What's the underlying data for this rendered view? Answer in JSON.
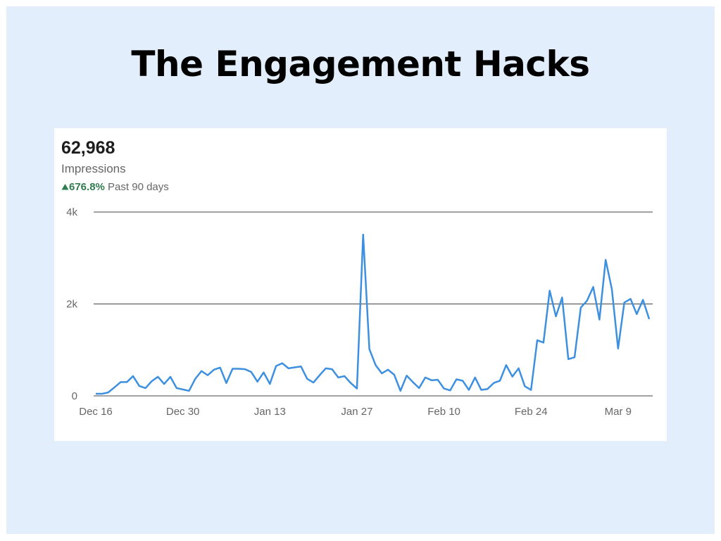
{
  "title": "The Engagement Hacks",
  "stats": {
    "total": "62,968",
    "metric": "Impressions",
    "change": "676.8%",
    "period": "Past 90 days"
  },
  "chart_data": {
    "type": "line",
    "categories": [
      "Dec 16",
      null,
      null,
      null,
      null,
      null,
      null,
      null,
      null,
      null,
      null,
      null,
      null,
      null,
      "Dec 30",
      null,
      null,
      null,
      null,
      null,
      null,
      null,
      null,
      null,
      null,
      null,
      null,
      null,
      "Jan 13",
      null,
      null,
      null,
      null,
      null,
      null,
      null,
      null,
      null,
      null,
      null,
      null,
      null,
      "Jan 27",
      null,
      null,
      null,
      null,
      null,
      null,
      null,
      null,
      null,
      null,
      null,
      null,
      null,
      "Feb 10",
      null,
      null,
      null,
      null,
      null,
      null,
      null,
      null,
      null,
      null,
      null,
      null,
      null,
      "Feb 24",
      null,
      null,
      null,
      null,
      null,
      null,
      null,
      null,
      null,
      null,
      null,
      null,
      null,
      "Mar 9",
      null,
      null,
      null,
      null,
      null
    ],
    "values": [
      45,
      45,
      75,
      185,
      300,
      300,
      430,
      215,
      170,
      320,
      415,
      260,
      415,
      170,
      140,
      110,
      370,
      540,
      450,
      570,
      615,
      280,
      590,
      590,
      580,
      520,
      310,
      510,
      260,
      650,
      710,
      600,
      620,
      640,
      370,
      290,
      450,
      600,
      580,
      400,
      430,
      280,
      160,
      3510,
      1020,
      670,
      490,
      570,
      460,
      110,
      440,
      300,
      170,
      400,
      340,
      350,
      160,
      120,
      360,
      330,
      130,
      400,
      130,
      150,
      280,
      330,
      670,
      420,
      600,
      210,
      130,
      1210,
      1160,
      2290,
      1730,
      2140,
      800,
      840,
      1920,
      2070,
      2370,
      1660,
      2960,
      2320,
      1030,
      2030,
      2110,
      1780,
      2090,
      1670
    ],
    "color": "#3d8fe0",
    "ylim": [
      0,
      4000
    ],
    "yticks": [
      0,
      {
        "value": 2000,
        "label": "2k"
      },
      {
        "value": 4000,
        "label": "4k"
      }
    ],
    "grid": true
  }
}
